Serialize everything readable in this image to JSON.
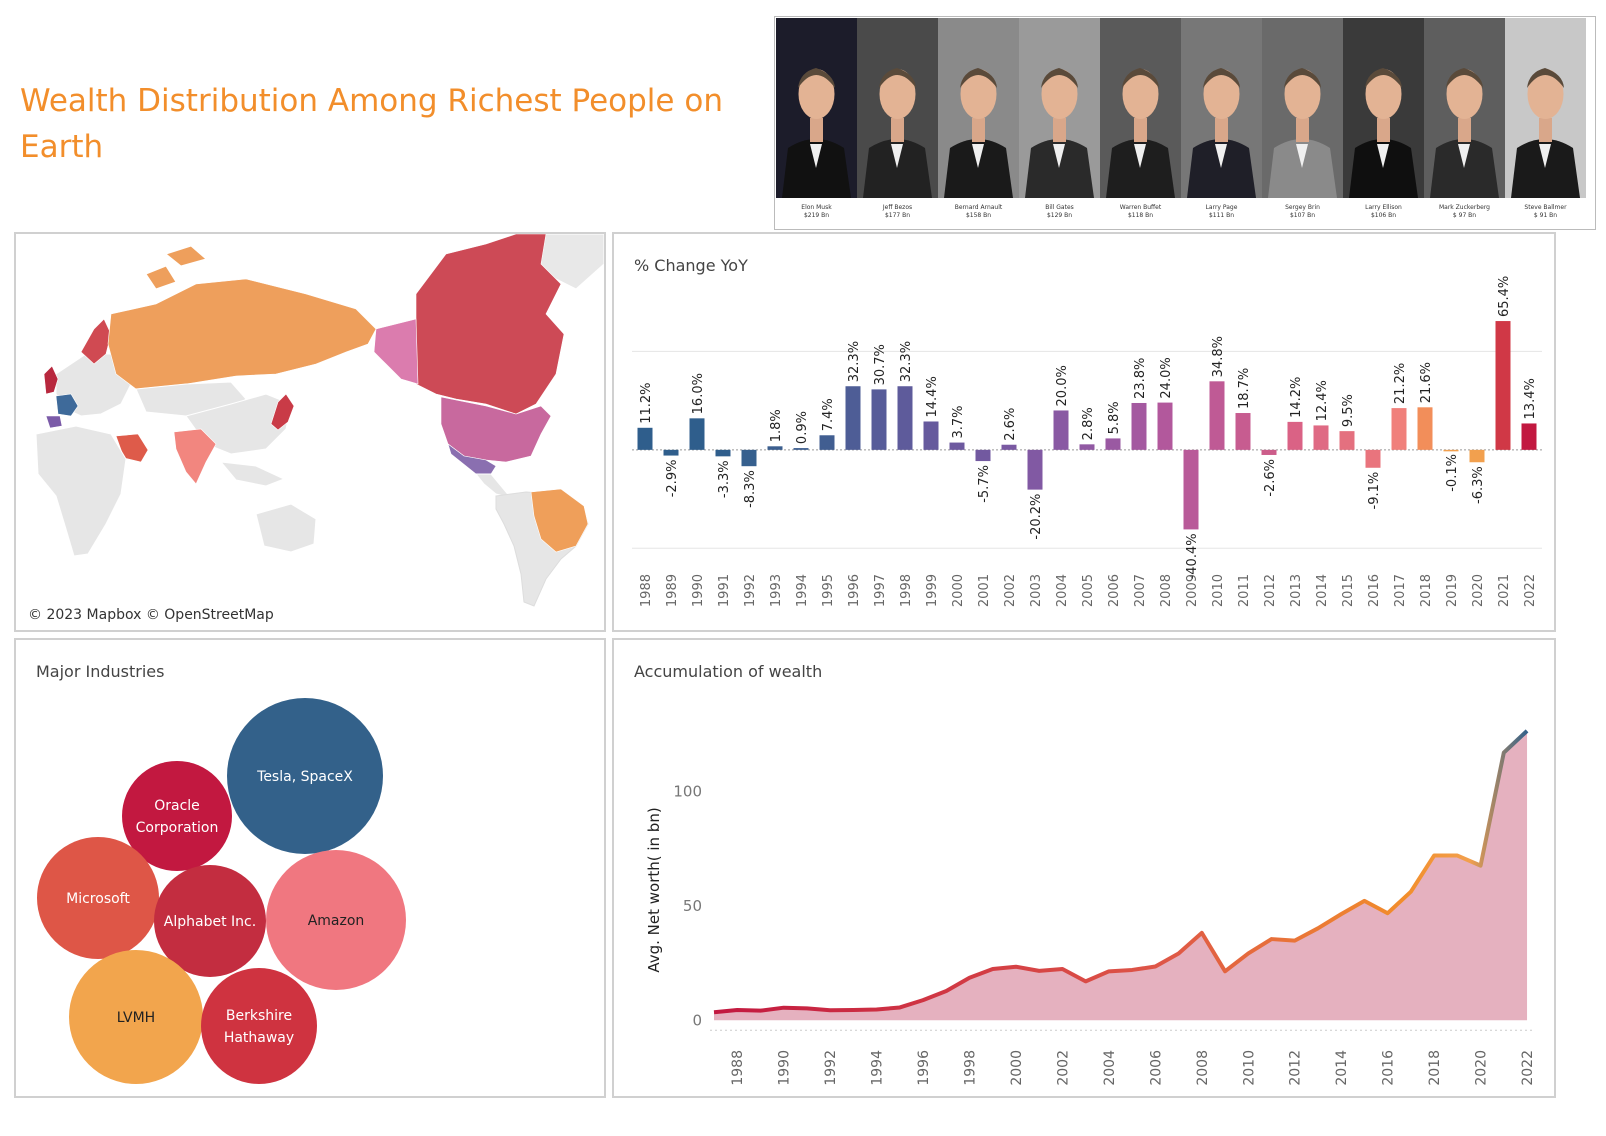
{
  "title": "Wealth Distribution Among Richest People on Earth",
  "photos": [
    {
      "name": "Elon Musk",
      "worth": "$219 Bn",
      "bg": "#1c1c2a",
      "suit": "#111"
    },
    {
      "name": "Jeff Bezos",
      "worth": "$177 Bn",
      "bg": "#4a4a4a",
      "suit": "#222"
    },
    {
      "name": "Bernard Arnault",
      "worth": "$158 Bn",
      "bg": "#8a8a8a",
      "suit": "#1a1a1a"
    },
    {
      "name": "Bill Gates",
      "worth": "$129 Bn",
      "bg": "#9a9a9a",
      "suit": "#2a2a2a"
    },
    {
      "name": "Warren Buffet",
      "worth": "$118 Bn",
      "bg": "#5a5a5a",
      "suit": "#1e1e1e"
    },
    {
      "name": "Larry Page",
      "worth": "$111 Bn",
      "bg": "#777777",
      "suit": "#1f1f28"
    },
    {
      "name": "Sergey Brin",
      "worth": "$107 Bn",
      "bg": "#6a6a6a",
      "suit": "#8a8a8a"
    },
    {
      "name": "Larry Ellison",
      "worth": "$106 Bn",
      "bg": "#3a3a3a",
      "suit": "#0f0f0f"
    },
    {
      "name": "Mark Zuckerberg",
      "worth": "$ 97 Bn",
      "bg": "#5e5e5e",
      "suit": "#2a2a2a"
    },
    {
      "name": "Steve Ballmer",
      "worth": "$ 91 Bn",
      "bg": "#c8c8c8",
      "suit": "#1a1a1a"
    }
  ],
  "map": {
    "attribution": "© 2023 Mapbox © OpenStreetMap"
  },
  "yoy": {
    "title": "% Change YoY"
  },
  "industries": {
    "title": "Major Industries",
    "bubbles": [
      {
        "label": [
          "Tesla, SpaceX"
        ],
        "color": "#33618A",
        "text_color": "#ffffff"
      },
      {
        "label": [
          "Oracle",
          "Corporation"
        ],
        "color": "#C21840",
        "text_color": "#ffffff"
      },
      {
        "label": [
          "Microsoft"
        ],
        "color": "#DE5647",
        "text_color": "#ffffff"
      },
      {
        "label": [
          "Alphabet Inc."
        ],
        "color": "#C32D40",
        "text_color": "#ffffff"
      },
      {
        "label": [
          "Amazon"
        ],
        "color": "#F07780",
        "text_color": "#222222"
      },
      {
        "label": [
          "LVMH"
        ],
        "color": "#F2A54D",
        "text_color": "#222222"
      },
      {
        "label": [
          "Berkshire",
          "Hathaway"
        ],
        "color": "#CF3340",
        "text_color": "#ffffff"
      }
    ]
  },
  "accum": {
    "title": "Accumulation of wealth"
  },
  "chart_data": [
    {
      "type": "bar",
      "title": "% Change YoY",
      "categories": [
        "1988",
        "1989",
        "1990",
        "1991",
        "1992",
        "1993",
        "1994",
        "1995",
        "1996",
        "1997",
        "1998",
        "1999",
        "2000",
        "2001",
        "2002",
        "2003",
        "2004",
        "2005",
        "2006",
        "2007",
        "2008",
        "2009",
        "2010",
        "2011",
        "2012",
        "2013",
        "2014",
        "2015",
        "2016",
        "2017",
        "2018",
        "2019",
        "2020",
        "2021",
        "2022"
      ],
      "values": [
        11.2,
        -2.9,
        16.0,
        -3.3,
        -8.3,
        1.8,
        0.9,
        7.4,
        32.3,
        30.7,
        32.3,
        14.4,
        3.7,
        -5.7,
        2.6,
        -20.2,
        20.0,
        2.8,
        5.8,
        23.8,
        24.0,
        -40.4,
        34.8,
        18.7,
        -2.6,
        14.2,
        12.4,
        9.5,
        -9.1,
        21.2,
        21.6,
        -0.1,
        -6.3,
        65.4,
        13.4
      ],
      "labels": [
        "11.2%",
        "-2.9%",
        "16.0%",
        "-3.3%",
        "-8.3%",
        "1.8%",
        "0.9%",
        "7.4%",
        "32.3%",
        "30.7%",
        "32.3%",
        "14.4%",
        "3.7%",
        "-5.7%",
        "2.6%",
        "-20.2%",
        "20.0%",
        "2.8%",
        "5.8%",
        "23.8%",
        "24.0%",
        "-40.4%",
        "34.8%",
        "18.7%",
        "-2.6%",
        "14.2%",
        "12.4%",
        "9.5%",
        "-9.1%",
        "21.2%",
        "21.6%",
        "-0.1%",
        "-6.3%",
        "65.4%",
        "13.4%"
      ],
      "colors": [
        "#2F5E8C",
        "#2F5E8C",
        "#2F5E8C",
        "#2F5E8C",
        "#36608E",
        "#3C5F8F",
        "#3E5F90",
        "#415E91",
        "#4E5D96",
        "#575C99",
        "#5E5B9B",
        "#665A9D",
        "#6D599F",
        "#7259A0",
        "#7A59A2",
        "#8159A3",
        "#8959A3",
        "#9159A3",
        "#9A59A2",
        "#A459A0",
        "#B2589C",
        "#B95A99",
        "#BF5A95",
        "#C75C90",
        "#CC5D8A",
        "#DA6285",
        "#DF6A84",
        "#E4707F",
        "#E9747D",
        "#F0807B",
        "#F28E5A",
        "#F2A04E",
        "#F2A04E",
        "#D03846",
        "#C21840"
      ],
      "ylim": [
        -60,
        70
      ],
      "grid": true
    },
    {
      "type": "area",
      "title": "Accumulation of wealth",
      "ylabel": "Avg. Net worth( in bn)",
      "x": [
        1987,
        1988,
        1989,
        1990,
        1991,
        1992,
        1993,
        1994,
        1995,
        1996,
        1997,
        1998,
        1999,
        2000,
        2001,
        2002,
        2003,
        2004,
        2005,
        2006,
        2007,
        2008,
        2009,
        2010,
        2011,
        2012,
        2013,
        2014,
        2015,
        2016,
        2017,
        2018,
        2019,
        2020,
        2021,
        2022
      ],
      "y": [
        3.5,
        4.5,
        4.2,
        5.5,
        5.2,
        4.4,
        4.5,
        4.7,
        5.6,
        8.8,
        12.8,
        18.6,
        22.4,
        23.4,
        21.6,
        22.4,
        17.0,
        21.4,
        22.0,
        23.5,
        29.2,
        38.2,
        21.4,
        29.2,
        35.5,
        34.8,
        40.2,
        46.4,
        52.2,
        46.8,
        56.2,
        72.0,
        72.0,
        67.6,
        117.0,
        126.5
      ],
      "xticks": [
        "1988",
        "1990",
        "1992",
        "1994",
        "1996",
        "1998",
        "2000",
        "2002",
        "2004",
        "2006",
        "2008",
        "2010",
        "2012",
        "2014",
        "2016",
        "2018",
        "2020",
        "2022"
      ],
      "yticks": [
        0,
        50,
        100
      ],
      "ylim": [
        -6,
        140
      ],
      "line_gradient": [
        "#C21840",
        "#DE5647",
        "#F28E2B",
        "#F2A04E",
        "#33618A"
      ],
      "fill_color": "#E1A3B4"
    }
  ]
}
